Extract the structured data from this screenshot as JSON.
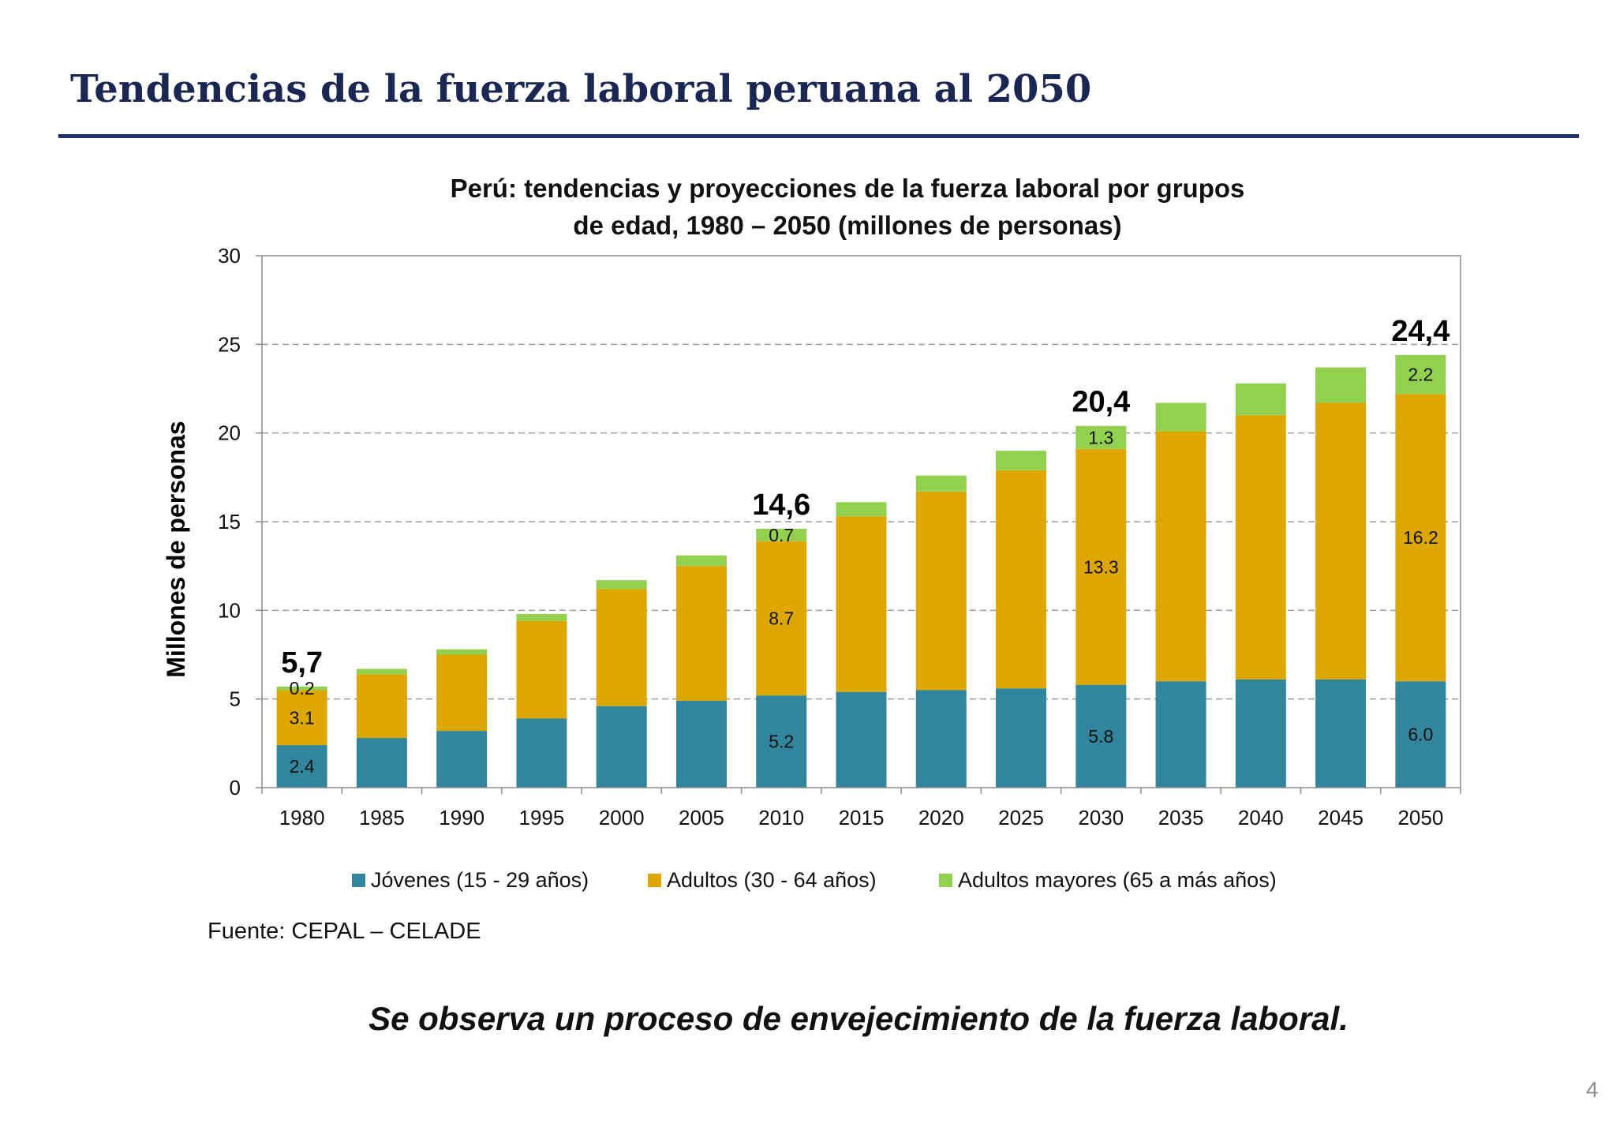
{
  "slide": {
    "title": "Tendencias de la fuerza laboral peruana al 2050",
    "source": "Fuente: CEPAL – CELADE",
    "conclusion": "Se observa un proceso de envejecimiento de la fuerza laboral.",
    "page_number": "4"
  },
  "colors": {
    "title": "#1B2753",
    "rule": "#1F3070",
    "gridline": "#9A9A9A",
    "axis": "#8C8C8C"
  },
  "chart_data": {
    "type": "bar",
    "stacked": true,
    "title_lines": [
      "Perú: tendencias y proyecciones de la fuerza laboral por grupos",
      "de edad, 1980 – 2050 (millones de personas)"
    ],
    "xlabel": "",
    "ylabel": "Millones de personas",
    "ylim": [
      0,
      30
    ],
    "yticks": [
      0,
      5,
      10,
      15,
      20,
      25,
      30
    ],
    "grid": true,
    "legend": "bottom",
    "categories": [
      "1980",
      "1985",
      "1990",
      "1995",
      "2000",
      "2005",
      "2010",
      "2015",
      "2020",
      "2025",
      "2030",
      "2035",
      "2040",
      "2045",
      "2050"
    ],
    "series": [
      {
        "name": "Jóvenes (15 - 29 años)",
        "color": "#31859C",
        "values": [
          2.4,
          2.8,
          3.2,
          3.9,
          4.6,
          4.9,
          5.2,
          5.4,
          5.5,
          5.6,
          5.8,
          6.0,
          6.1,
          6.1,
          6.0
        ]
      },
      {
        "name": "Adultos (30 - 64 años)",
        "color": "#DDA700",
        "values": [
          3.1,
          3.6,
          4.3,
          5.5,
          6.6,
          7.6,
          8.7,
          9.9,
          11.2,
          12.3,
          13.3,
          14.1,
          14.9,
          15.6,
          16.2
        ]
      },
      {
        "name": "Adultos mayores (65 a más años)",
        "color": "#92D050",
        "values": [
          0.2,
          0.3,
          0.3,
          0.4,
          0.5,
          0.6,
          0.7,
          0.8,
          0.9,
          1.1,
          1.3,
          1.6,
          1.8,
          2.0,
          2.2
        ]
      }
    ],
    "labeled_bars": [
      {
        "category": "1980",
        "segment_labels": [
          "2.4",
          "3.1",
          "0.2"
        ],
        "total_label": "5,7"
      },
      {
        "category": "2010",
        "segment_labels": [
          "5.2",
          "8.7",
          "0.7"
        ],
        "total_label": "14,6"
      },
      {
        "category": "2030",
        "segment_labels": [
          "5.8",
          "13.3",
          "1.3"
        ],
        "total_label": "20,4"
      },
      {
        "category": "2050",
        "segment_labels": [
          "6.0",
          "16.2",
          "2.2"
        ],
        "total_label": "24,4"
      }
    ]
  }
}
